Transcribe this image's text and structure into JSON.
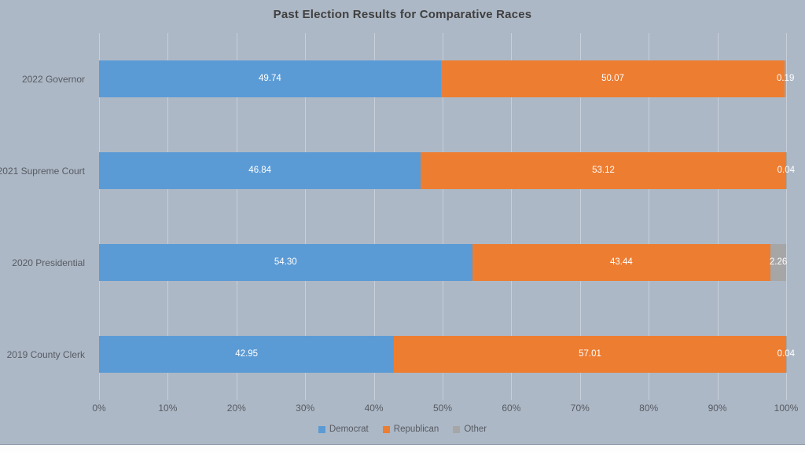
{
  "title": "Past Election Results for Comparative Races",
  "colors": {
    "chart_background": "#ADB8C6",
    "democrat": "#5B9BD5",
    "republican": "#ED7D31",
    "other": "#A6A6A6",
    "gridline": "#C7CFDB",
    "title_text": "#404040",
    "axis_text": "#565B63",
    "value_label_text": "#FFFFFF"
  },
  "chart_data": {
    "type": "bar",
    "orientation": "horizontal",
    "stacked": true,
    "title": "Past Election Results for Comparative Races",
    "categories": [
      "2022 Governor",
      "2021 Supreme Court",
      "2020 Presidential",
      "2019 County Clerk"
    ],
    "series": [
      {
        "name": "Democrat",
        "color": "#5B9BD5",
        "values": [
          49.74,
          46.84,
          54.3,
          42.95
        ],
        "labels": [
          "49.74",
          "46.84",
          "54.30",
          "42.95"
        ]
      },
      {
        "name": "Republican",
        "color": "#ED7D31",
        "values": [
          50.07,
          53.12,
          43.44,
          57.01
        ],
        "labels": [
          "50.07",
          "53.12",
          "43.44",
          "57.01"
        ]
      },
      {
        "name": "Other",
        "color": "#A6A6A6",
        "values": [
          0.19,
          0.04,
          2.26,
          0.04
        ],
        "labels": [
          "0.19",
          "0.04",
          "2.26",
          "0.04"
        ]
      }
    ],
    "xlabel": "",
    "ylabel": "",
    "xlim": [
      0,
      100
    ],
    "x_ticks": [
      "0%",
      "10%",
      "20%",
      "30%",
      "40%",
      "50%",
      "60%",
      "70%",
      "80%",
      "90%",
      "100%"
    ],
    "grid": true,
    "legend": [
      {
        "label": "Democrat",
        "color": "#5B9BD5"
      },
      {
        "label": "Republican",
        "color": "#ED7D31"
      },
      {
        "label": "Other",
        "color": "#A6A6A6"
      }
    ],
    "legend_position": "bottom"
  }
}
